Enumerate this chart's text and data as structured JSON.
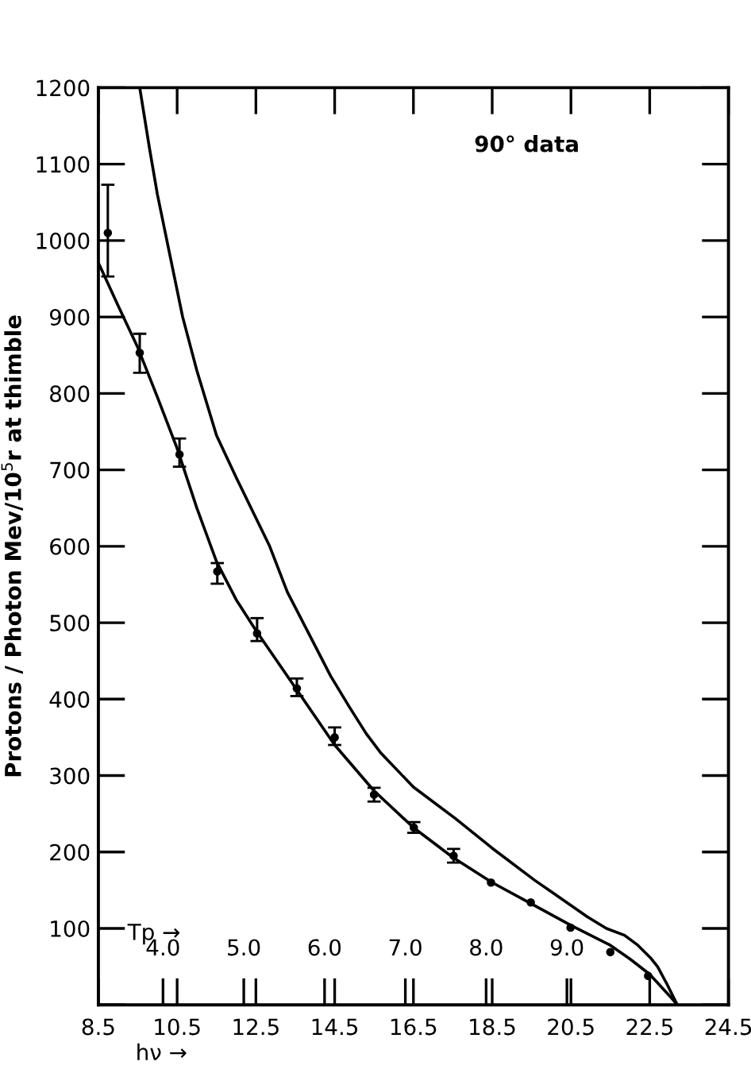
{
  "chart_data": {
    "type": "line",
    "ylabel": "Protons / Photon Mev/10$^{5}$r at thimble",
    "xlabel": "hν →",
    "x2label": "Tp →",
    "annotations": [
      "90° data"
    ],
    "xlim": [
      8.5,
      24.5
    ],
    "xticks": [
      8.5,
      10.5,
      12.5,
      14.5,
      16.5,
      18.5,
      20.5,
      22.5,
      24.5
    ],
    "ylim": [
      0,
      1200
    ],
    "yticks": [
      {
        "value": 0,
        "label": null
      },
      100,
      200,
      300,
      400,
      500,
      600,
      700,
      800,
      900,
      1000,
      1100,
      1200
    ],
    "x2lim": [
      3.2,
      11.0
    ],
    "x2ticks": [
      {
        "value": 4,
        "label": "4.0"
      },
      {
        "value": 5,
        "label": "5.0"
      },
      {
        "value": 6,
        "label": "6.0"
      },
      {
        "value": 7,
        "label": "7.0"
      },
      {
        "value": 8,
        "label": "8.0"
      },
      {
        "value": 9,
        "label": "9.0"
      }
    ],
    "grid": false,
    "legend": false,
    "series": [
      {
        "type": "scatter",
        "color": "#000000",
        "marker": "circle",
        "x": [
          8.74,
          9.55,
          10.56,
          11.52,
          12.53,
          13.54,
          14.5,
          15.5,
          16.51,
          17.52,
          18.47,
          19.48,
          20.49,
          21.5,
          22.46
        ],
        "values": [
          1010,
          853,
          720,
          567,
          486,
          414,
          350,
          275,
          232,
          195,
          160,
          134,
          101,
          69,
          38
        ],
        "errors": [
          [
            953,
            1073
          ],
          [
            827,
            878
          ],
          [
            704,
            741
          ],
          [
            551,
            578
          ],
          [
            476,
            506
          ],
          [
            404,
            427
          ],
          [
            340,
            363
          ],
          [
            266,
            284
          ],
          [
            225,
            239
          ],
          [
            186,
            204
          ],
          null,
          null,
          null,
          null,
          null
        ]
      },
      {
        "color": "#000000",
        "line_style": "solid",
        "marker": "none",
        "x": [
          8.5,
          9.0,
          9.5,
          10.0,
          10.5,
          11.0,
          11.5,
          12.0,
          12.5,
          13.5,
          14.5,
          15.5,
          16.5,
          17.5,
          18.5,
          19.5,
          20.5,
          21.5,
          22.0,
          22.5,
          23.0,
          23.2
        ],
        "values": [
          971,
          915,
          860,
          795,
          728,
          650,
          580,
          530,
          490,
          415,
          340,
          280,
          232,
          193,
          160,
          132,
          104,
          78,
          60,
          40,
          12,
          0
        ]
      },
      {
        "color": "#000000",
        "line_style": "solid",
        "marker": "none",
        "x": [
          9.55,
          9.8,
          10.0,
          10.3,
          10.64,
          11.0,
          11.5,
          12.0,
          12.85,
          13.3,
          13.8,
          14.4,
          14.87,
          15.3,
          15.68,
          16.5,
          17.56,
          18.5,
          19.58,
          20.0,
          20.92,
          21.4,
          21.86,
          22.2,
          22.53,
          22.7,
          22.94,
          23.2
        ],
        "values": [
          1200,
          1120,
          1060,
          985,
          900,
          830,
          745,
          690,
          600,
          540,
          490,
          430,
          390,
          355,
          329,
          285,
          244,
          205,
          163,
          148,
          115,
          100,
          91,
          78,
          61,
          50,
          27,
          0
        ]
      }
    ]
  }
}
